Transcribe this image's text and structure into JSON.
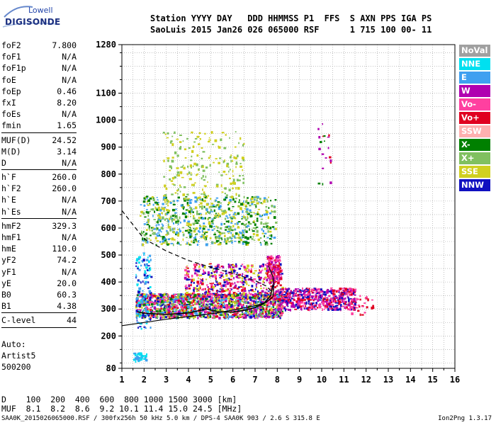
{
  "logo": {
    "line1": "Lowell",
    "line2": "DIGISONDE"
  },
  "header": {
    "line1": "Station YYYY DAY   DDD HHMMSS P1  FFS  S AXN PPS IGA PS",
    "line2": "SaoLuis 2015 Jan26 026 065000 RSF      1 715 100 00- 11"
  },
  "params_group1": [
    {
      "name": "foF2",
      "value": "7.800"
    },
    {
      "name": "foF1",
      "value": "N/A"
    },
    {
      "name": "foF1p",
      "value": "N/A"
    },
    {
      "name": "foE",
      "value": "N/A"
    },
    {
      "name": "foEp",
      "value": "0.46"
    },
    {
      "name": "fxI",
      "value": "8.20"
    },
    {
      "name": "foEs",
      "value": "N/A"
    },
    {
      "name": "fmin",
      "value": "1.65"
    }
  ],
  "params_group2": [
    {
      "name": "MUF(D)",
      "value": "24.52"
    },
    {
      "name": "M(D)",
      "value": "3.14"
    },
    {
      "name": "D",
      "value": "N/A"
    }
  ],
  "params_group3": [
    {
      "name": "h`F",
      "value": "260.0"
    },
    {
      "name": "h`F2",
      "value": "260.0"
    },
    {
      "name": "h`E",
      "value": "N/A"
    },
    {
      "name": "h`Es",
      "value": "N/A"
    }
  ],
  "params_group4": [
    {
      "name": "hmF2",
      "value": "329.3"
    },
    {
      "name": "hmF1",
      "value": "N/A"
    },
    {
      "name": "hmE",
      "value": "110.0"
    },
    {
      "name": "yF2",
      "value": "74.2"
    },
    {
      "name": "yF1",
      "value": "N/A"
    },
    {
      "name": "yE",
      "value": "20.0"
    },
    {
      "name": "B0",
      "value": "60.3"
    },
    {
      "name": "B1",
      "value": "4.38"
    }
  ],
  "params_group5": [
    {
      "name": "C-level",
      "value": "44"
    }
  ],
  "auto": {
    "line1": "Auto:",
    "line2": "Artist5",
    "line3": "500200"
  },
  "legend": [
    {
      "label": "NoVal",
      "color": "#a0a0a0"
    },
    {
      "label": "NNE",
      "color": "#00e0f0"
    },
    {
      "label": "E",
      "color": "#3fa0f0"
    },
    {
      "label": "W",
      "color": "#b000b0"
    },
    {
      "label": "Vo-",
      "color": "#ff40a0"
    },
    {
      "label": "Vo+",
      "color": "#e00020"
    },
    {
      "label": "SSW",
      "color": "#ffb0b0"
    },
    {
      "label": "X-",
      "color": "#008000"
    },
    {
      "label": "X+",
      "color": "#80c060"
    },
    {
      "label": "SSE",
      "color": "#d0d020"
    },
    {
      "label": "NNW",
      "color": "#1010c0"
    }
  ],
  "bottom": {
    "d_line": "D    100  200  400  600  800 1000 1500 3000 [km]",
    "muf_line": "MUF  8.1  8.2  8.6  9.2 10.1 11.4 15.0 24.5 [MHz]"
  },
  "footer": "SAA0K_2015026065000.RSF / 300fx256h 50 kHz 5.0 km / DPS-4 SAA0K 903 / 2.6 S 315.8 E",
  "version": "Ion2Png 1.3.17",
  "chart_data": {
    "type": "scatter",
    "x_range": [
      1,
      16
    ],
    "y_range": [
      80,
      1280
    ],
    "x_ticks": [
      "1",
      "2",
      "3",
      "4",
      "5",
      "6",
      "7",
      "8",
      "9",
      "10",
      "11",
      "12",
      "13",
      "14",
      "15",
      "16"
    ],
    "y_ticks": [
      {
        "v": 80,
        "label": "80"
      },
      {
        "v": 200,
        "label": "200"
      },
      {
        "v": 300,
        "label": "300"
      },
      {
        "v": 400,
        "label": "400"
      },
      {
        "v": 500,
        "label": "500"
      },
      {
        "v": 600,
        "label": "600"
      },
      {
        "v": 700,
        "label": "700"
      },
      {
        "v": 800,
        "label": "800"
      },
      {
        "v": 900,
        "label": "900"
      },
      {
        "v": 1000,
        "label": "1000"
      },
      {
        "v": 1100,
        "label": "1100"
      },
      {
        "v": 1280,
        "label": "1280"
      }
    ],
    "grid": true,
    "ordinary_trace": [
      [
        1.7,
        290
      ],
      [
        2,
        284
      ],
      [
        3,
        280
      ],
      [
        4,
        285
      ],
      [
        4.8,
        300
      ],
      [
        5.3,
        290
      ],
      [
        6,
        288
      ],
      [
        6.5,
        295
      ],
      [
        7,
        305
      ],
      [
        7.4,
        320
      ],
      [
        7.7,
        350
      ],
      [
        7.8,
        390
      ]
    ],
    "profile_curve": [
      [
        1,
        238
      ],
      [
        2,
        250
      ],
      [
        3,
        262
      ],
      [
        4,
        272
      ],
      [
        5,
        282
      ],
      [
        6,
        296
      ],
      [
        7,
        312
      ],
      [
        7.5,
        325
      ],
      [
        7.8,
        345
      ],
      [
        7.85,
        390
      ],
      [
        7.8,
        420
      ],
      [
        7.6,
        460
      ]
    ],
    "muf_curve": [
      [
        1,
        665
      ],
      [
        2,
        560
      ],
      [
        3,
        515
      ],
      [
        4,
        480
      ],
      [
        5,
        455
      ],
      [
        6,
        432
      ],
      [
        7,
        405
      ],
      [
        7.5,
        385
      ],
      [
        7.8,
        360
      ]
    ],
    "clusters": [
      {
        "x": [
          1.6,
          8.2
        ],
        "y": [
          270,
          360
        ],
        "n": 1600,
        "colors": [
          "#ff40a0",
          "#e00020",
          "#b000b0",
          "#d0d020",
          "#3fa0f0",
          "#008000",
          "#1010c0",
          "#80c060"
        ]
      },
      {
        "x": [
          3.8,
          8.2
        ],
        "y": [
          340,
          470
        ],
        "n": 500,
        "colors": [
          "#ff40a0",
          "#b000b0",
          "#1010c0",
          "#d0d020",
          "#e00020"
        ]
      },
      {
        "x": [
          7.5,
          8.1
        ],
        "y": [
          400,
          500
        ],
        "n": 150,
        "colors": [
          "#e00020",
          "#ff40a0",
          "#b000b0"
        ]
      },
      {
        "x": [
          8.0,
          11.5
        ],
        "y": [
          300,
          380
        ],
        "n": 600,
        "colors": [
          "#ff40a0",
          "#e00020",
          "#b000b0",
          "#1010c0"
        ]
      },
      {
        "x": [
          1.8,
          7.9
        ],
        "y": [
          540,
          720
        ],
        "n": 800,
        "colors": [
          "#d0d020",
          "#80c060",
          "#3fa0f0",
          "#008000"
        ]
      },
      {
        "x": [
          2.8,
          6.5
        ],
        "y": [
          720,
          960
        ],
        "n": 200,
        "colors": [
          "#d0d020",
          "#80c060"
        ]
      },
      {
        "x": [
          1.6,
          2.3
        ],
        "y": [
          230,
          510
        ],
        "n": 120,
        "colors": [
          "#3fa0f0",
          "#00e0f0",
          "#1010c0"
        ]
      },
      {
        "x": [
          1.5,
          2.1
        ],
        "y": [
          110,
          140
        ],
        "n": 40,
        "colors": [
          "#3fa0f0",
          "#00e0f0"
        ]
      },
      {
        "x": [
          9.8,
          10.4
        ],
        "y": [
          740,
          1010
        ],
        "n": 20,
        "colors": [
          "#b000b0",
          "#e00020",
          "#008000"
        ]
      },
      {
        "x": [
          11.0,
          12.3
        ],
        "y": [
          270,
          360
        ],
        "n": 30,
        "colors": [
          "#ff40a0",
          "#e00020"
        ]
      }
    ]
  }
}
